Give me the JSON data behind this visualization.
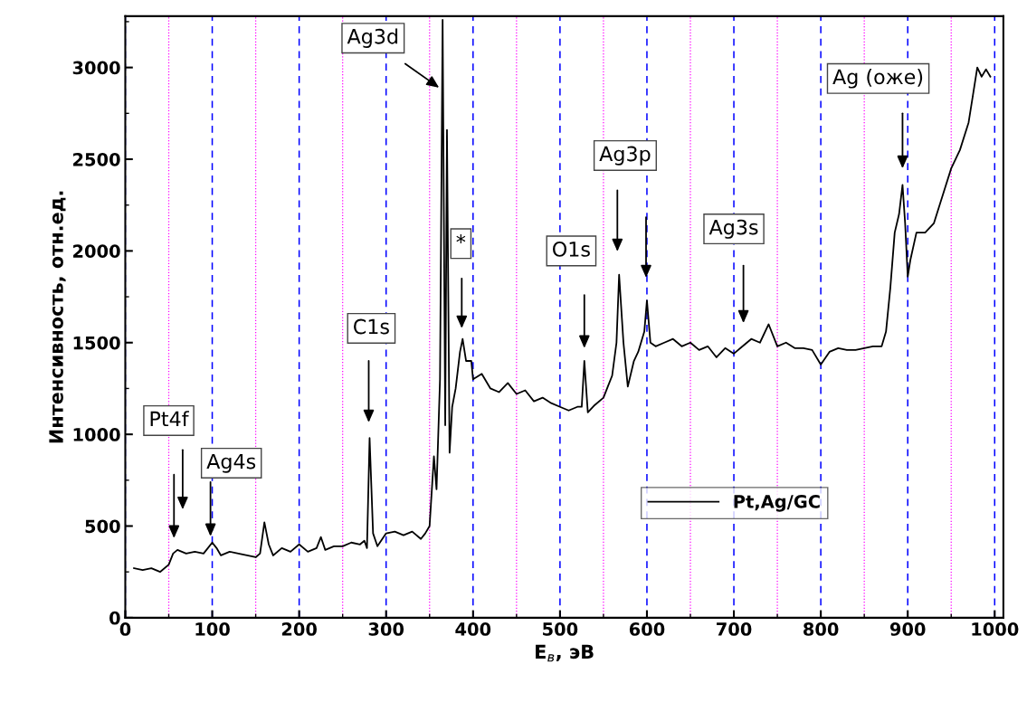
{
  "chart_data": {
    "type": "line",
    "xlabel": "E$_{в}$, эВ",
    "ylabel": "Интенсивность, отн.ед.",
    "xlim": [
      0,
      1010
    ],
    "ylim": [
      0,
      3280
    ],
    "xticks": [
      0,
      100,
      200,
      300,
      400,
      500,
      600,
      700,
      800,
      900,
      1000
    ],
    "yticks": [
      0,
      500,
      1000,
      1500,
      2000,
      2500,
      3000
    ],
    "grid": "x",
    "legend": "bottom right",
    "marker": "none",
    "line_style": "solid",
    "series": [
      {
        "name": "Pt,Ag/GC",
        "color": "#000000",
        "x": [
          10,
          20,
          30,
          40,
          50,
          55,
          60,
          70,
          80,
          90,
          95,
          100,
          105,
          110,
          120,
          130,
          140,
          150,
          155,
          160,
          165,
          170,
          180,
          190,
          200,
          210,
          220,
          225,
          230,
          240,
          250,
          260,
          270,
          275,
          278,
          281,
          285,
          290,
          300,
          310,
          320,
          330,
          340,
          345,
          350,
          355,
          358,
          362,
          365,
          368,
          370,
          373,
          376,
          380,
          385,
          388,
          392,
          398,
          400,
          410,
          420,
          430,
          440,
          450,
          460,
          470,
          480,
          490,
          500,
          510,
          520,
          525,
          528,
          532,
          540,
          550,
          555,
          560,
          565,
          568,
          573,
          578,
          585,
          590,
          597,
          600,
          604,
          610,
          620,
          630,
          640,
          650,
          660,
          670,
          680,
          690,
          700,
          710,
          720,
          730,
          740,
          750,
          760,
          770,
          780,
          790,
          800,
          810,
          820,
          830,
          840,
          850,
          860,
          870,
          875,
          880,
          885,
          890,
          894,
          897,
          900,
          903,
          910,
          920,
          930,
          940,
          950,
          960,
          970,
          975,
          980,
          985,
          990,
          995
        ],
        "values": [
          270,
          260,
          270,
          250,
          290,
          350,
          370,
          350,
          360,
          350,
          380,
          410,
          380,
          340,
          360,
          350,
          340,
          330,
          350,
          520,
          400,
          340,
          380,
          360,
          400,
          360,
          380,
          440,
          370,
          390,
          390,
          410,
          400,
          420,
          380,
          980,
          460,
          390,
          460,
          470,
          450,
          470,
          430,
          460,
          500,
          880,
          700,
          1300,
          3260,
          1050,
          2660,
          900,
          1150,
          1250,
          1450,
          1520,
          1400,
          1400,
          1300,
          1330,
          1250,
          1230,
          1280,
          1220,
          1240,
          1180,
          1200,
          1170,
          1150,
          1130,
          1150,
          1150,
          1400,
          1120,
          1160,
          1200,
          1260,
          1320,
          1500,
          1870,
          1500,
          1260,
          1400,
          1450,
          1560,
          1730,
          1500,
          1480,
          1500,
          1520,
          1480,
          1500,
          1460,
          1480,
          1420,
          1470,
          1440,
          1480,
          1520,
          1500,
          1600,
          1480,
          1500,
          1470,
          1470,
          1460,
          1380,
          1450,
          1470,
          1460,
          1460,
          1470,
          1480,
          1480,
          1560,
          1800,
          2100,
          2200,
          2360,
          2150,
          1860,
          1950,
          2100,
          2100,
          2150,
          2300,
          2450,
          2550,
          2700,
          2850,
          3000,
          2950,
          2990,
          2950
        ]
      }
    ],
    "ref_lines": [
      {
        "axis": "x",
        "value": 50,
        "color": "#ff00ff",
        "line_style": "dotted"
      },
      {
        "axis": "x",
        "value": 150,
        "color": "#ff00ff",
        "line_style": "dotted"
      },
      {
        "axis": "x",
        "value": 250,
        "color": "#ff00ff",
        "line_style": "dotted"
      },
      {
        "axis": "x",
        "value": 350,
        "color": "#ff00ff",
        "line_style": "dotted"
      },
      {
        "axis": "x",
        "value": 450,
        "color": "#ff00ff",
        "line_style": "dotted"
      },
      {
        "axis": "x",
        "value": 550,
        "color": "#ff00ff",
        "line_style": "dotted"
      },
      {
        "axis": "x",
        "value": 650,
        "color": "#ff00ff",
        "line_style": "dotted"
      },
      {
        "axis": "x",
        "value": 750,
        "color": "#ff00ff",
        "line_style": "dotted"
      },
      {
        "axis": "x",
        "value": 850,
        "color": "#ff00ff",
        "line_style": "dotted"
      },
      {
        "axis": "x",
        "value": 950,
        "color": "#ff00ff",
        "line_style": "dotted"
      }
    ],
    "annotations": [
      "Pt4f",
      "Ag4s",
      "C1s",
      "Ag3d",
      "*",
      "O1s",
      "Ag3p",
      "Ag3s",
      "Ag (оже)"
    ]
  }
}
